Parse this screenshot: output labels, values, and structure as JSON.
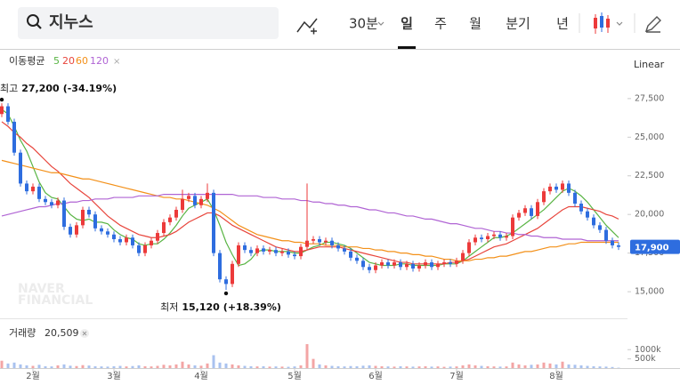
{
  "toolbar": {
    "search": "지누스",
    "interval": "30분",
    "periods": [
      "일",
      "주",
      "월",
      "분기",
      "년"
    ]
  },
  "chart_data": {
    "type": "candlestick",
    "scale_label": "Linear",
    "log": false,
    "grid": false,
    "up_color": "#ec3a3a",
    "down_color": "#2e6ddf",
    "watermark": [
      "NAVER",
      "FINANCIAL"
    ],
    "categories": [
      null,
      null,
      null,
      null,
      null,
      "2월",
      null,
      null,
      null,
      null,
      null,
      null,
      null,
      null,
      null,
      null,
      null,
      null,
      "3월",
      null,
      null,
      null,
      null,
      null,
      null,
      null,
      null,
      null,
      null,
      null,
      null,
      null,
      "4월",
      null,
      null,
      null,
      null,
      null,
      null,
      null,
      null,
      null,
      null,
      null,
      null,
      null,
      null,
      "5월",
      null,
      null,
      null,
      null,
      null,
      null,
      null,
      null,
      null,
      null,
      null,
      null,
      "6월",
      null,
      null,
      null,
      null,
      null,
      null,
      null,
      null,
      null,
      null,
      null,
      null,
      "7월",
      null,
      null,
      null,
      null,
      null,
      null,
      null,
      null,
      null,
      null,
      null,
      null,
      null,
      null,
      null,
      "8월",
      null,
      null,
      null,
      null,
      null,
      null,
      null,
      null,
      null,
      null
    ],
    "open": [
      26500,
      27000,
      26000,
      24000,
      22000,
      21500,
      21800,
      21000,
      20800,
      20600,
      20900,
      19200,
      18700,
      19300,
      20300,
      20000,
      19100,
      18900,
      18700,
      18400,
      18200,
      18500,
      18000,
      17500,
      18000,
      18300,
      18800,
      19500,
      19800,
      20300,
      21000,
      21200,
      20600,
      21000,
      21400,
      17500,
      15800,
      15500,
      16800,
      18000,
      17700,
      17500,
      17800,
      17600,
      17700,
      17500,
      17600,
      17400,
      17300,
      17900,
      18300,
      18400,
      18200,
      18300,
      18000,
      17800,
      17600,
      17200,
      17000,
      16600,
      16400,
      16700,
      16900,
      16700,
      16900,
      16600,
      16800,
      16500,
      16700,
      16900,
      16600,
      16800,
      16900,
      16800,
      17000,
      17500,
      18200,
      18500,
      18400,
      18600,
      18700,
      18500,
      18600,
      19800,
      20100,
      20400,
      19900,
      20800,
      21500,
      21800,
      21600,
      22000,
      21400,
      20700,
      20200,
      19800,
      19300,
      19000,
      18300,
      18000
    ],
    "high": [
      27200,
      27200,
      26200,
      24200,
      22200,
      22000,
      22000,
      21200,
      21000,
      21100,
      21100,
      19400,
      19500,
      20500,
      20500,
      20200,
      19300,
      19100,
      18900,
      18600,
      18700,
      18700,
      18200,
      18200,
      18500,
      19000,
      19700,
      20000,
      20500,
      21600,
      21400,
      21400,
      21200,
      22000,
      21600,
      17700,
      16000,
      17000,
      18200,
      18200,
      17900,
      18000,
      18000,
      17900,
      17900,
      17800,
      17800,
      17600,
      18100,
      22000,
      18600,
      18600,
      18500,
      18500,
      18200,
      18000,
      17800,
      17400,
      17200,
      16800,
      16900,
      17100,
      17100,
      17100,
      17100,
      17000,
      17000,
      16900,
      17100,
      17100,
      17000,
      17100,
      17100,
      17200,
      17700,
      18400,
      18700,
      18700,
      18800,
      18900,
      18900,
      18800,
      20000,
      20300,
      20600,
      20600,
      21000,
      21700,
      22000,
      22000,
      22200,
      22200,
      21600,
      20900,
      20400,
      20000,
      19500,
      19200,
      18500,
      18200
    ],
    "low": [
      26300,
      25800,
      23800,
      21800,
      21300,
      21300,
      20800,
      20600,
      20400,
      20400,
      19000,
      18500,
      18500,
      19100,
      19800,
      18900,
      18700,
      18500,
      18200,
      18000,
      18000,
      17800,
      17300,
      17300,
      17800,
      18100,
      18600,
      19300,
      19600,
      20100,
      20800,
      20400,
      20400,
      20800,
      17300,
      15600,
      15120,
      15300,
      16600,
      17500,
      17300,
      17300,
      17400,
      17400,
      17300,
      17300,
      17200,
      17100,
      17100,
      17700,
      18100,
      18000,
      18000,
      17800,
      17600,
      17400,
      17000,
      16800,
      16400,
      16200,
      16200,
      16500,
      16500,
      16500,
      16400,
      16400,
      16300,
      16300,
      16500,
      16400,
      16400,
      16600,
      16600,
      16600,
      16800,
      17300,
      18000,
      18200,
      18200,
      18400,
      18300,
      18300,
      18400,
      19600,
      19900,
      19700,
      19700,
      20600,
      21300,
      21400,
      21400,
      21200,
      20500,
      20000,
      19600,
      19100,
      18800,
      18100,
      17800,
      17700
    ],
    "close": [
      27000,
      26000,
      24000,
      22000,
      21500,
      21800,
      21000,
      20800,
      20600,
      20900,
      19200,
      18700,
      19300,
      20300,
      20000,
      19100,
      18900,
      18700,
      18400,
      18200,
      18500,
      18000,
      17500,
      18000,
      18300,
      18800,
      19500,
      19800,
      20300,
      21000,
      21200,
      20600,
      21000,
      21400,
      17500,
      15800,
      15500,
      16800,
      18000,
      17700,
      17500,
      17800,
      17600,
      17700,
      17500,
      17600,
      17400,
      17300,
      17900,
      18300,
      18400,
      18200,
      18300,
      18000,
      17800,
      17600,
      17200,
      17000,
      16600,
      16400,
      16700,
      16900,
      16700,
      16900,
      16600,
      16800,
      16500,
      16700,
      16900,
      16600,
      16800,
      16900,
      16800,
      17000,
      17500,
      18200,
      18500,
      18400,
      18600,
      18700,
      18500,
      18600,
      19800,
      20100,
      20400,
      19900,
      20800,
      21500,
      21800,
      21600,
      22000,
      21400,
      20700,
      20200,
      19800,
      19300,
      19000,
      18300,
      18000,
      17900
    ],
    "ylim": [
      13450,
      30600
    ],
    "yticks": [
      {
        "value": 15000,
        "label": "15,000"
      },
      {
        "value": 17500,
        "label": "17,500"
      },
      {
        "value": 20000,
        "label": "20,000"
      },
      {
        "value": 22500,
        "label": "22,500"
      },
      {
        "value": 25000,
        "label": "25,000"
      },
      {
        "value": 27500,
        "label": "27,500"
      }
    ],
    "current_price": {
      "value": 17900,
      "label": "17,900"
    },
    "high_marker": {
      "prefix": "최고",
      "value": 27200,
      "label": "27,200",
      "change": "(-34.19%)"
    },
    "low_marker": {
      "prefix": "최저",
      "value": 15120,
      "label": "15,120",
      "change": "(+18.39%)"
    },
    "moving_average": {
      "label": "이동평균",
      "series": [
        {
          "name": "5",
          "color": "#58b443",
          "values": [
            26800,
            26500,
            25700,
            24800,
            24100,
            23100,
            22100,
            21400,
            21100,
            21000,
            20500,
            20000,
            19700,
            19600,
            19700,
            19500,
            19500,
            19400,
            19000,
            18700,
            18500,
            18400,
            18100,
            18000,
            18100,
            18100,
            18400,
            18800,
            19300,
            19900,
            20400,
            20600,
            20800,
            21000,
            20300,
            19300,
            18200,
            17400,
            16700,
            16800,
            17100,
            17600,
            17700,
            17700,
            17600,
            17600,
            17600,
            17500,
            17500,
            17700,
            17900,
            18000,
            18200,
            18200,
            18100,
            18000,
            17800,
            17500,
            17200,
            16900,
            16800,
            16700,
            16700,
            16700,
            16800,
            16800,
            16700,
            16700,
            16700,
            16700,
            16700,
            16800,
            16800,
            16800,
            17000,
            17300,
            17600,
            17900,
            18200,
            18500,
            18500,
            18600,
            18800,
            19100,
            19400,
            19700,
            20000,
            20300,
            20700,
            21100,
            21500,
            21700,
            21500,
            21200,
            20800,
            20300,
            19800,
            19300,
            18900,
            18500
          ]
        },
        {
          "name": "20",
          "color": "#e8453c",
          "values": [
            26000,
            25700,
            25300,
            25000,
            24600,
            24300,
            23900,
            23500,
            23100,
            22800,
            22400,
            22000,
            21700,
            21400,
            21100,
            20700,
            20300,
            19900,
            19600,
            19300,
            19100,
            18900,
            18700,
            18600,
            18500,
            18500,
            18600,
            18700,
            18900,
            19200,
            19500,
            19700,
            19900,
            20100,
            20100,
            19900,
            19600,
            19300,
            19100,
            18900,
            18700,
            18500,
            18300,
            18100,
            17900,
            17800,
            17700,
            17600,
            17600,
            17700,
            17800,
            17900,
            17900,
            17900,
            17900,
            17800,
            17700,
            17600,
            17500,
            17400,
            17300,
            17200,
            17100,
            17000,
            16900,
            16900,
            16800,
            16800,
            16800,
            16800,
            16800,
            16800,
            16900,
            16900,
            17000,
            17100,
            17300,
            17500,
            17700,
            17900,
            18000,
            18100,
            18300,
            18500,
            18700,
            18900,
            19100,
            19400,
            19700,
            20000,
            20300,
            20500,
            20500,
            20500,
            20400,
            20300,
            20200,
            20000,
            19900,
            19700
          ]
        },
        {
          "name": "60",
          "color": "#f39019",
          "values": [
            23500,
            23400,
            23300,
            23200,
            23100,
            23000,
            22900,
            22800,
            22700,
            22700,
            22600,
            22500,
            22400,
            22300,
            22300,
            22200,
            22100,
            22000,
            21900,
            21800,
            21700,
            21600,
            21500,
            21400,
            21300,
            21200,
            21100,
            21100,
            21000,
            21000,
            20900,
            20800,
            20700,
            20600,
            20400,
            20200,
            19900,
            19600,
            19300,
            19100,
            18900,
            18700,
            18600,
            18500,
            18400,
            18300,
            18300,
            18200,
            18200,
            18100,
            18100,
            18100,
            18000,
            18000,
            18000,
            17900,
            17900,
            17900,
            17800,
            17800,
            17700,
            17700,
            17600,
            17600,
            17500,
            17500,
            17400,
            17400,
            17300,
            17300,
            17200,
            17100,
            17100,
            17000,
            17000,
            17000,
            17100,
            17100,
            17200,
            17200,
            17300,
            17300,
            17400,
            17500,
            17600,
            17600,
            17700,
            17800,
            17900,
            17900,
            18000,
            18100,
            18100,
            18200,
            18200,
            18200,
            18200,
            18200,
            18200,
            18200
          ]
        },
        {
          "name": "120",
          "color": "#b064d4",
          "values": [
            19900,
            20000,
            20100,
            20200,
            20300,
            20400,
            20500,
            20500,
            20600,
            20700,
            20700,
            20800,
            20800,
            20900,
            20900,
            21000,
            21000,
            21000,
            21100,
            21100,
            21100,
            21100,
            21200,
            21200,
            21200,
            21200,
            21300,
            21300,
            21300,
            21300,
            21300,
            21300,
            21300,
            21300,
            21300,
            21300,
            21300,
            21300,
            21200,
            21200,
            21200,
            21200,
            21100,
            21100,
            21100,
            21000,
            21000,
            21000,
            20900,
            20900,
            20800,
            20800,
            20700,
            20700,
            20600,
            20600,
            20500,
            20500,
            20400,
            20300,
            20300,
            20200,
            20100,
            20100,
            20000,
            19900,
            19900,
            19800,
            19700,
            19700,
            19600,
            19500,
            19400,
            19400,
            19300,
            19200,
            19100,
            19100,
            19000,
            18900,
            18900,
            18800,
            18800,
            18700,
            18700,
            18600,
            18600,
            18500,
            18500,
            18500,
            18400,
            18400,
            18400,
            18400,
            18300,
            18300,
            18300,
            18300,
            18300,
            18300
          ]
        }
      ]
    },
    "volume": {
      "label": "거래량",
      "current": {
        "value": 20509,
        "label": "20,509"
      },
      "up_color": "#f3a5a5",
      "down_color": "#a9c2ef",
      "ylim": [
        0,
        2700000
      ],
      "yticks": [
        {
          "value": 500000,
          "label": "500k"
        },
        {
          "value": 1000000,
          "label": "1000k"
        }
      ],
      "values": [
        400000,
        250000,
        300000,
        200000,
        150000,
        120000,
        180000,
        100000,
        90000,
        150000,
        200000,
        130000,
        110000,
        160000,
        140000,
        100000,
        90000,
        80000,
        100000,
        120000,
        90000,
        110000,
        150000,
        100000,
        90000,
        120000,
        180000,
        150000,
        200000,
        350000,
        200000,
        150000,
        130000,
        250000,
        700000,
        300000,
        250000,
        200000,
        150000,
        120000,
        100000,
        90000,
        100000,
        80000,
        90000,
        80000,
        70000,
        90000,
        150000,
        1300000,
        500000,
        200000,
        150000,
        120000,
        100000,
        90000,
        110000,
        100000,
        130000,
        150000,
        120000,
        100000,
        90000,
        80000,
        100000,
        90000,
        80000,
        90000,
        100000,
        80000,
        90000,
        70000,
        80000,
        90000,
        150000,
        200000,
        150000,
        120000,
        100000,
        90000,
        80000,
        90000,
        300000,
        200000,
        150000,
        180000,
        200000,
        300000,
        250000,
        200000,
        350000,
        200000,
        180000,
        150000,
        120000,
        100000,
        90000,
        80000,
        60000,
        20509
      ]
    }
  }
}
